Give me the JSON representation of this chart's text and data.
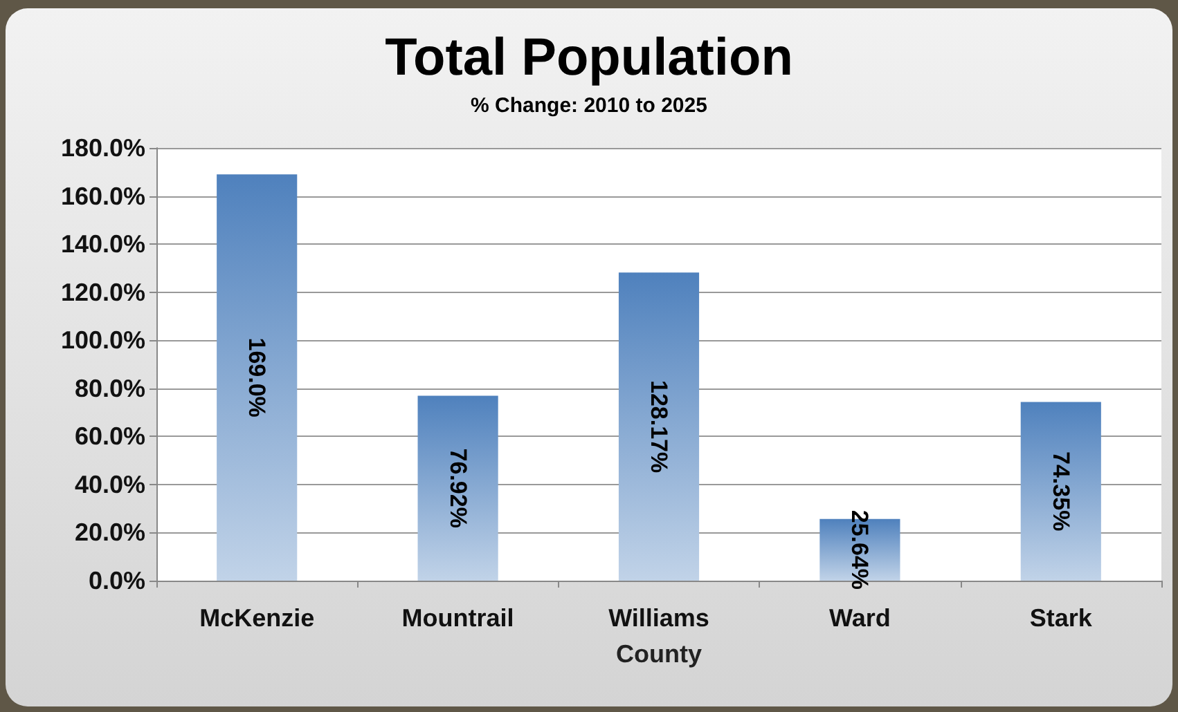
{
  "chart_data": {
    "type": "bar",
    "title": "Total Population",
    "subtitle": "% Change: 2010 to 2025",
    "xlabel": "County",
    "categories": [
      "McKenzie",
      "Mountrail",
      "Williams",
      "Ward",
      "Stark"
    ],
    "values": [
      169.0,
      76.92,
      128.17,
      25.64,
      74.35
    ],
    "value_labels": [
      "169.0%",
      "76.92%",
      "128.17%",
      "25.64%",
      "74.35%"
    ],
    "color": "#4f81bd",
    "ylim": [
      0,
      180
    ],
    "yticks": [
      {
        "value": 0,
        "label": "0.0%"
      },
      {
        "value": 20,
        "label": "20.0%"
      },
      {
        "value": 40,
        "label": "40.0%"
      },
      {
        "value": 60,
        "label": "60.0%"
      },
      {
        "value": 80,
        "label": "80.0%"
      },
      {
        "value": 100,
        "label": "100.0%"
      },
      {
        "value": 120,
        "label": "120.0%"
      },
      {
        "value": 140,
        "label": "140.0%"
      },
      {
        "value": 160,
        "label": "160.0%"
      },
      {
        "value": 180,
        "label": "180.0%"
      }
    ],
    "grid": "y"
  }
}
